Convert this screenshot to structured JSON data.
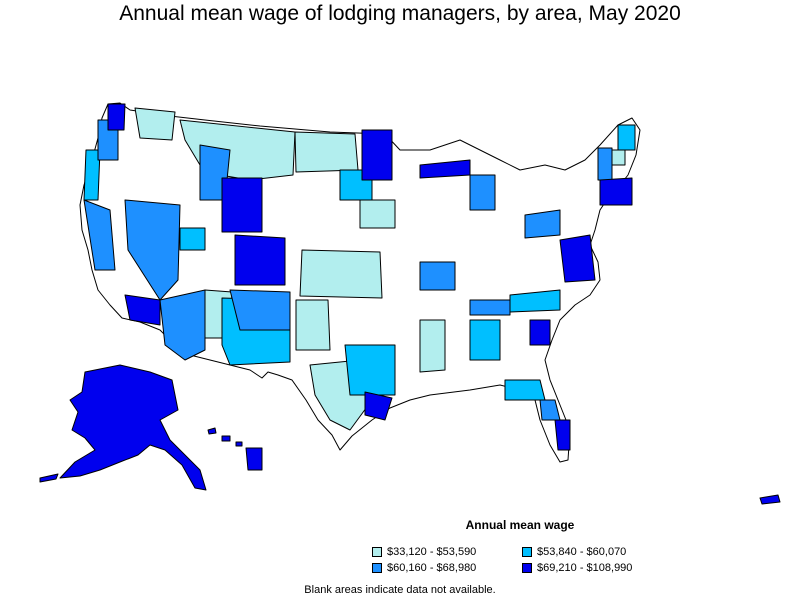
{
  "title": "Annual mean wage of lodging managers, by area, May 2020",
  "legend": {
    "title": "Annual mean wage",
    "items": [
      {
        "label": "$33,120 - $53,590",
        "color": "#b2eeee"
      },
      {
        "label": "$53,840 - $60,070",
        "color": "#00bfff"
      },
      {
        "label": "$60,160 - $68,980",
        "color": "#1e90ff"
      },
      {
        "label": "$69,210 - $108,990",
        "color": "#0000ee"
      }
    ]
  },
  "footnote": "Blank areas indicate data not available.",
  "colors": {
    "tier1": "#b2eeee",
    "tier2": "#00bfff",
    "tier3": "#1e90ff",
    "tier4": "#0000ee",
    "outline": "#000000",
    "background": "#ffffff"
  },
  "regions": [
    {
      "name": "Alaska",
      "tier": 4
    },
    {
      "name": "Hawaii",
      "tier": 4
    },
    {
      "name": "Wyoming",
      "tier": 4
    },
    {
      "name": "Colorado",
      "tier": 4
    },
    {
      "name": "Nevada",
      "tier": 3
    },
    {
      "name": "Arizona",
      "tier": 3
    },
    {
      "name": "New Mexico",
      "tier": 2
    },
    {
      "name": "Montana",
      "tier": 1
    },
    {
      "name": "Kansas",
      "tier": 1
    },
    {
      "name": "Texas",
      "tier": 1
    }
  ]
}
